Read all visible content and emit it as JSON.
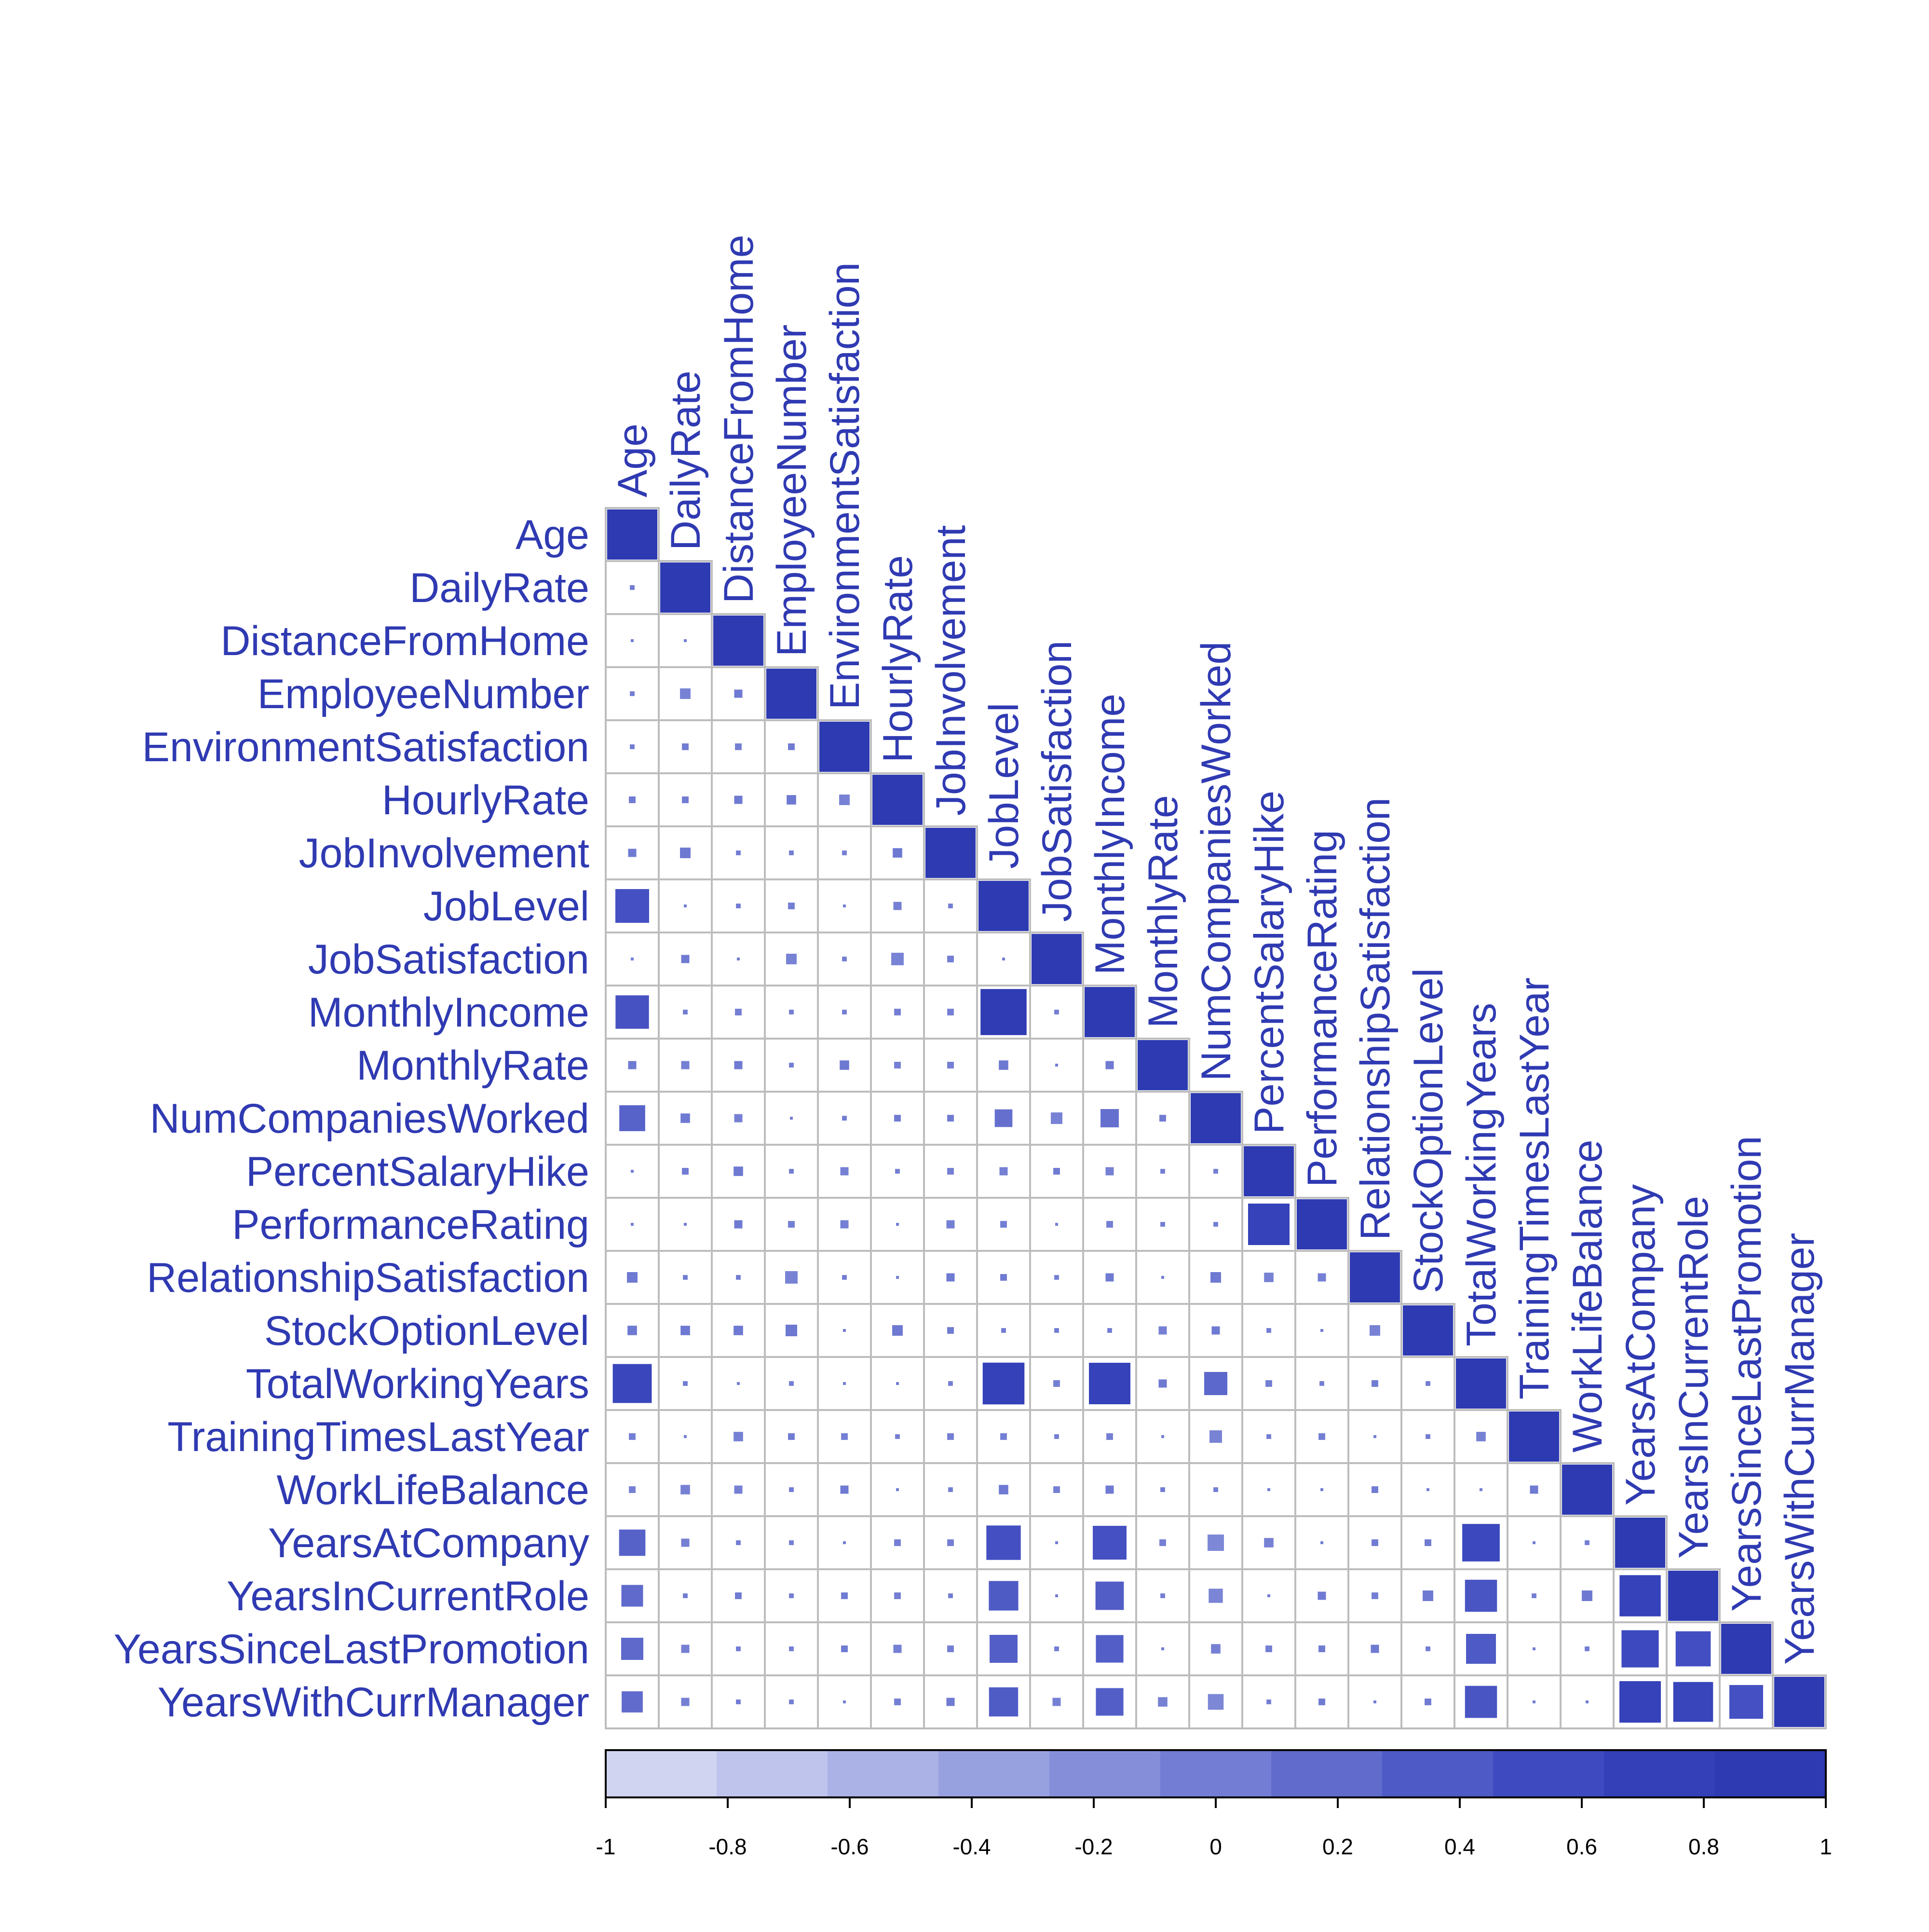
{
  "chart_data": {
    "type": "heatmap",
    "title": "",
    "layout": "lower-triangle",
    "glyph": "square",
    "variables": [
      "Age",
      "DailyRate",
      "DistanceFromHome",
      "EmployeeNumber",
      "EnvironmentSatisfaction",
      "HourlyRate",
      "JobInvolvement",
      "JobLevel",
      "JobSatisfaction",
      "MonthlyIncome",
      "MonthlyRate",
      "NumCompaniesWorked",
      "PercentSalaryHike",
      "PerformanceRating",
      "RelationshipSatisfaction",
      "StockOptionLevel",
      "TotalWorkingYears",
      "TrainingTimesLastYear",
      "WorkLifeBalance",
      "YearsAtCompany",
      "YearsInCurrentRole",
      "YearsSinceLastPromotion",
      "YearsWithCurrManager"
    ],
    "matrix": [
      [
        1
      ],
      [
        0.01,
        1
      ],
      [
        0,
        0,
        1
      ],
      [
        -0.01,
        -0.05,
        0.03,
        1
      ],
      [
        0.01,
        0.02,
        -0.02,
        0.02,
        1
      ],
      [
        0.02,
        0.02,
        0.03,
        0.04,
        -0.05,
        1
      ],
      [
        0.03,
        0.05,
        0.01,
        -0.01,
        -0.01,
        0.04,
        1
      ],
      [
        0.51,
        0,
        0.01,
        -0.02,
        0,
        -0.03,
        -0.01,
        1
      ],
      [
        0,
        0.03,
        0,
        -0.05,
        -0.01,
        -0.07,
        -0.02,
        0,
        1
      ],
      [
        0.5,
        0.01,
        -0.02,
        -0.01,
        -0.01,
        -0.02,
        -0.02,
        0.95,
        -0.01,
        1
      ],
      [
        0.03,
        -0.03,
        0.03,
        0.01,
        0.04,
        -0.02,
        -0.02,
        0.04,
        0,
        0.03,
        1
      ],
      [
        0.3,
        0.04,
        -0.03,
        0,
        0.01,
        0.02,
        0.02,
        0.14,
        -0.06,
        0.15,
        0.02,
        1
      ],
      [
        0,
        0.02,
        0.04,
        -0.01,
        -0.03,
        -0.01,
        -0.02,
        -0.03,
        0.02,
        -0.03,
        -0.01,
        -0.01,
        1
      ],
      [
        0,
        0,
        0.03,
        -0.02,
        -0.03,
        0,
        -0.03,
        -0.02,
        0,
        -0.02,
        -0.01,
        -0.01,
        0.77,
        1
      ],
      [
        0.05,
        0.01,
        0.01,
        -0.07,
        0.01,
        0,
        0.03,
        0.02,
        -0.01,
        0.03,
        -0.0,
        0.05,
        -0.04,
        -0.03,
        1
      ],
      [
        0.04,
        0.04,
        0.04,
        0.06,
        0,
        0.05,
        0.02,
        0.01,
        0.01,
        0.01,
        -0.03,
        0.03,
        0.01,
        0,
        -0.05,
        1
      ],
      [
        0.68,
        0.01,
        0,
        -0.01,
        0,
        0,
        -0.01,
        0.78,
        -0.02,
        0.77,
        0.03,
        0.24,
        -0.02,
        -0.01,
        0.02,
        0.01,
        1
      ],
      [
        -0.02,
        0,
        -0.04,
        0.02,
        -0.02,
        -0.01,
        -0.02,
        -0.02,
        -0.01,
        -0.02,
        0,
        -0.07,
        -0.01,
        -0.02,
        0,
        0.01,
        -0.04,
        1
      ],
      [
        -0.02,
        -0.04,
        -0.03,
        0.01,
        0.03,
        -0.0,
        -0.01,
        0.04,
        -0.02,
        0.03,
        0.01,
        -0.01,
        0,
        0,
        0.02,
        0,
        0,
        0.03,
        1
      ],
      [
        0.31,
        -0.03,
        0.01,
        -0.01,
        0,
        -0.02,
        -0.02,
        0.53,
        0,
        0.51,
        -0.02,
        -0.12,
        -0.04,
        0,
        0.02,
        0.02,
        0.63,
        0,
        0.01,
        1
      ],
      [
        0.21,
        0.01,
        0.02,
        -0.01,
        0.02,
        -0.02,
        0.01,
        0.39,
        0,
        0.36,
        -0.01,
        -0.09,
        0,
        0.03,
        -0.02,
        0.05,
        0.46,
        -0.01,
        0.05,
        0.76,
        1
      ],
      [
        0.22,
        -0.03,
        0.01,
        -0.01,
        0.02,
        -0.03,
        -0.02,
        0.35,
        0.01,
        0.34,
        0,
        -0.04,
        -0.02,
        0.02,
        0.03,
        0.01,
        0.4,
        0,
        0.01,
        0.62,
        0.55,
        1
      ],
      [
        0.2,
        -0.03,
        0.01,
        -0.01,
        0,
        -0.02,
        0.03,
        0.38,
        -0.03,
        0.34,
        -0.04,
        -0.11,
        -0.01,
        0.02,
        0,
        0.02,
        0.46,
        -0.0,
        0,
        0.77,
        0.71,
        0.51,
        1
      ]
    ],
    "colorbar": {
      "min": -1,
      "max": 1,
      "ticks": [
        "-1",
        "-0.8",
        "-0.6",
        "-0.4",
        "-0.2",
        "0",
        "0.2",
        "0.4",
        "0.6",
        "0.8",
        "1"
      ],
      "colors": [
        "#d0d4f0",
        "#bec4ec",
        "#aab2e6",
        "#98a1e0",
        "#858fd9",
        "#727dd3",
        "#606bcc",
        "#4e5ac5",
        "#3e4abf",
        "#3340b8",
        "#2e3ab2"
      ]
    },
    "colors": {
      "label": "#2f3ab2",
      "grid": "#bdbdbd",
      "positive": "#2e3ab2",
      "negative": "#5c6acb"
    }
  }
}
